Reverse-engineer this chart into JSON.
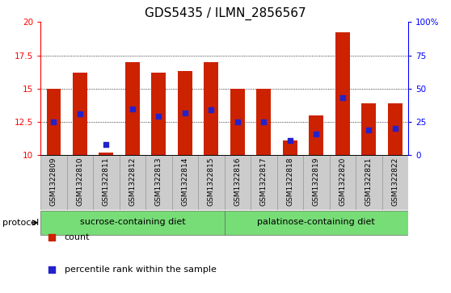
{
  "title": "GDS5435 / ILMN_2856567",
  "samples": [
    "GSM1322809",
    "GSM1322810",
    "GSM1322811",
    "GSM1322812",
    "GSM1322813",
    "GSM1322814",
    "GSM1322815",
    "GSM1322816",
    "GSM1322817",
    "GSM1322818",
    "GSM1322819",
    "GSM1322820",
    "GSM1322821",
    "GSM1322822"
  ],
  "count_values": [
    15.0,
    16.2,
    10.2,
    17.0,
    16.2,
    16.3,
    17.0,
    15.0,
    15.0,
    11.1,
    13.0,
    19.2,
    13.9,
    13.9
  ],
  "percentile_values": [
    12.5,
    13.1,
    10.8,
    13.5,
    12.9,
    13.2,
    13.4,
    12.5,
    12.5,
    11.1,
    11.6,
    14.3,
    11.9,
    12.0
  ],
  "y_min": 10,
  "y_max": 20,
  "y_ticks_left": [
    10,
    12.5,
    15,
    17.5,
    20
  ],
  "y_ticks_right": [
    0,
    25,
    50,
    75,
    100
  ],
  "bar_color": "#cc2200",
  "dot_color": "#2222cc",
  "bar_width": 0.55,
  "sucrose_indices": [
    0,
    6
  ],
  "palatinose_indices": [
    7,
    13
  ],
  "sucrose_label": "sucrose-containing diet",
  "palatinose_label": "palatinose-containing diet",
  "protocol_label": "protocol",
  "legend_count": "count",
  "legend_percentile": "percentile rank within the sample",
  "group_color": "#77dd77",
  "sample_bg_color": "#cccccc",
  "ax_bg_color": "#ffffff",
  "title_fontsize": 11,
  "tick_fontsize": 7.5,
  "sample_fontsize": 6.5,
  "legend_fontsize": 8,
  "protocol_fontsize": 8,
  "group_fontsize": 8
}
